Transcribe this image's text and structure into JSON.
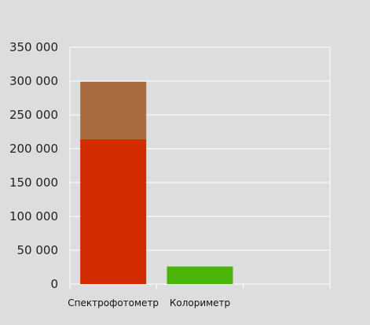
{
  "chart_data": {
    "type": "bar",
    "stacked": true,
    "categories": [
      "Спектрофотометр",
      "Колориметр",
      ""
    ],
    "series": [
      {
        "color": "#d32b00",
        "values": [
          214000,
          0,
          0
        ]
      },
      {
        "color": "#ab6b40",
        "values": [
          85000,
          0,
          0
        ]
      },
      {
        "color": "#4ab40a",
        "values": [
          0,
          26000,
          0
        ]
      }
    ],
    "ylim": [
      0,
      350000
    ],
    "yticks": [
      0,
      50000,
      100000,
      150000,
      200000,
      250000,
      300000,
      350000
    ],
    "ytick_labels": [
      "0",
      "50 000",
      "100 000",
      "150 000",
      "200 000",
      "250 000",
      "300 000",
      "350 000"
    ],
    "grid": true,
    "legend": "none",
    "title": "",
    "xlabel": "",
    "ylabel": ""
  },
  "colors": {
    "background": "#dcddde",
    "gridline": "#ffffff"
  }
}
